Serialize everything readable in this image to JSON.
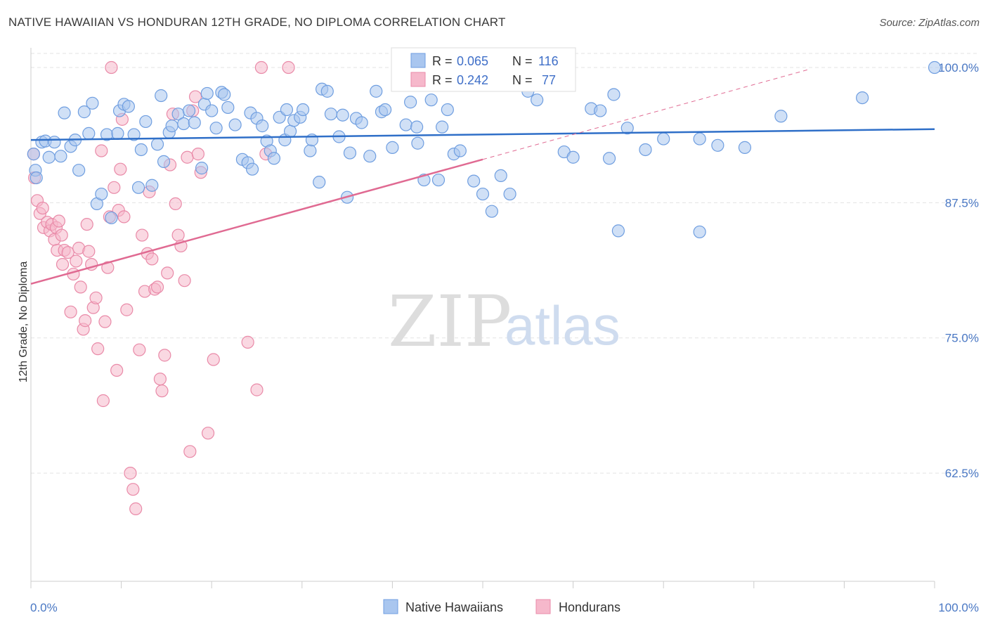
{
  "title": "NATIVE HAWAIIAN VS HONDURAN 12TH GRADE, NO DIPLOMA CORRELATION CHART",
  "source": "Source: ZipAtlas.com",
  "watermark": {
    "zip": "ZIP",
    "atlas": "atlas"
  },
  "colors": {
    "blue_fill": "#a9c6ef",
    "blue_stroke": "#6f9ee0",
    "blue_line": "#2f6fc8",
    "pink_fill": "#f6b8cb",
    "pink_stroke": "#e98aa8",
    "pink_line": "#e06a92",
    "grid": "#e3e3e3",
    "axis_text": "#4a78c4"
  },
  "chart_data": {
    "type": "scatter",
    "title": "NATIVE HAWAIIAN VS HONDURAN 12TH GRADE, NO DIPLOMA CORRELATION CHART",
    "xlabel": "",
    "ylabel": "12th Grade, No Diploma",
    "xlim": [
      0,
      100
    ],
    "ylim": [
      52.5,
      101.3
    ],
    "x_ticks_labels": [
      "0.0%",
      "100.0%"
    ],
    "y_ticks": [
      62.5,
      75.0,
      87.5,
      100.0
    ],
    "y_tick_labels": [
      "62.5%",
      "75.0%",
      "87.5%",
      "100.0%"
    ],
    "grid": true,
    "legend": {
      "position": "top-center",
      "entries": [
        {
          "r_label": "R =",
          "r": "0.065",
          "n_label": "N =",
          "n": "116"
        },
        {
          "r_label": "R =",
          "r": "0.242",
          "n_label": "N =",
          "n": "77"
        }
      ]
    },
    "series": [
      {
        "name": "Native Hawaiians",
        "trend": {
          "x0": 0,
          "y0": 93.3,
          "x1": 100,
          "y1": 94.3
        },
        "points": [
          [
            0.3,
            92.0
          ],
          [
            0.5,
            90.5
          ],
          [
            0.6,
            89.8
          ],
          [
            1.2,
            93.1
          ],
          [
            1.6,
            93.2
          ],
          [
            2.0,
            91.7
          ],
          [
            2.6,
            93.1
          ],
          [
            3.3,
            91.8
          ],
          [
            3.7,
            95.8
          ],
          [
            4.4,
            92.7
          ],
          [
            4.9,
            93.3
          ],
          [
            5.3,
            90.5
          ],
          [
            5.9,
            95.9
          ],
          [
            6.4,
            93.9
          ],
          [
            6.8,
            96.7
          ],
          [
            7.3,
            87.4
          ],
          [
            7.8,
            88.3
          ],
          [
            8.4,
            93.8
          ],
          [
            8.9,
            86.1
          ],
          [
            9.6,
            93.9
          ],
          [
            9.8,
            96.0
          ],
          [
            10.3,
            96.6
          ],
          [
            10.8,
            96.4
          ],
          [
            11.4,
            93.8
          ],
          [
            11.9,
            88.9
          ],
          [
            12.2,
            92.4
          ],
          [
            12.7,
            95.0
          ],
          [
            13.4,
            89.1
          ],
          [
            14.0,
            92.9
          ],
          [
            14.4,
            97.4
          ],
          [
            14.7,
            91.3
          ],
          [
            15.3,
            94.0
          ],
          [
            15.6,
            94.6
          ],
          [
            16.3,
            95.7
          ],
          [
            16.9,
            94.8
          ],
          [
            17.5,
            96.0
          ],
          [
            18.1,
            94.9
          ],
          [
            18.9,
            90.7
          ],
          [
            19.2,
            96.6
          ],
          [
            19.5,
            97.6
          ],
          [
            20.0,
            96.0
          ],
          [
            20.5,
            94.4
          ],
          [
            21.1,
            97.7
          ],
          [
            21.4,
            97.5
          ],
          [
            21.8,
            96.3
          ],
          [
            22.6,
            94.7
          ],
          [
            23.4,
            91.5
          ],
          [
            24.0,
            91.2
          ],
          [
            24.3,
            95.8
          ],
          [
            24.5,
            90.6
          ],
          [
            25.0,
            95.3
          ],
          [
            25.6,
            94.6
          ],
          [
            26.1,
            93.2
          ],
          [
            26.5,
            92.3
          ],
          [
            26.9,
            91.6
          ],
          [
            27.5,
            95.4
          ],
          [
            28.1,
            93.3
          ],
          [
            28.3,
            96.1
          ],
          [
            28.7,
            94.1
          ],
          [
            29.1,
            95.1
          ],
          [
            29.8,
            95.4
          ],
          [
            30.1,
            96.1
          ],
          [
            30.9,
            92.3
          ],
          [
            31.1,
            93.3
          ],
          [
            31.9,
            89.4
          ],
          [
            32.2,
            98.0
          ],
          [
            32.8,
            97.8
          ],
          [
            33.2,
            95.7
          ],
          [
            34.1,
            93.6
          ],
          [
            34.5,
            95.6
          ],
          [
            35.0,
            88.0
          ],
          [
            35.3,
            92.1
          ],
          [
            36.0,
            95.3
          ],
          [
            36.6,
            94.9
          ],
          [
            37.5,
            91.8
          ],
          [
            38.2,
            97.8
          ],
          [
            38.8,
            95.9
          ],
          [
            39.2,
            96.1
          ],
          [
            40.0,
            92.6
          ],
          [
            41.0,
            100.0
          ],
          [
            41.5,
            94.7
          ],
          [
            42.0,
            96.8
          ],
          [
            42.7,
            94.5
          ],
          [
            42.8,
            93.0
          ],
          [
            43.5,
            89.6
          ],
          [
            44.3,
            97.0
          ],
          [
            45.1,
            89.6
          ],
          [
            45.5,
            94.5
          ],
          [
            46.1,
            96.1
          ],
          [
            46.8,
            92.0
          ],
          [
            47.5,
            92.3
          ],
          [
            48.0,
            100.0
          ],
          [
            49.0,
            89.5
          ],
          [
            50.0,
            88.3
          ],
          [
            51.0,
            86.7
          ],
          [
            52.0,
            90.0
          ],
          [
            53.0,
            88.3
          ],
          [
            55.0,
            97.8
          ],
          [
            56.0,
            97.0
          ],
          [
            57.0,
            100.0
          ],
          [
            59.0,
            92.2
          ],
          [
            60.0,
            91.7
          ],
          [
            62.0,
            96.2
          ],
          [
            63.0,
            96.0
          ],
          [
            64.0,
            91.6
          ],
          [
            64.5,
            97.5
          ],
          [
            65.0,
            84.9
          ],
          [
            66.0,
            94.4
          ],
          [
            68.0,
            92.4
          ],
          [
            70.0,
            93.4
          ],
          [
            74.0,
            84.8
          ],
          [
            74.0,
            93.4
          ],
          [
            76.0,
            92.8
          ],
          [
            79.0,
            92.6
          ],
          [
            83.0,
            95.5
          ],
          [
            92.0,
            97.2
          ],
          [
            100.0,
            100.0
          ]
        ]
      },
      {
        "name": "Hondurans",
        "trend": {
          "x0": 0,
          "y0": 80.0,
          "x1": 50,
          "y1": 91.5,
          "dash_x1": 86,
          "dash_y1": 99.8
        },
        "points": [
          [
            0.3,
            92.0
          ],
          [
            0.4,
            89.8
          ],
          [
            0.7,
            87.7
          ],
          [
            1.0,
            86.5
          ],
          [
            1.3,
            87.0
          ],
          [
            1.4,
            85.2
          ],
          [
            1.8,
            85.7
          ],
          [
            2.1,
            84.9
          ],
          [
            2.3,
            85.5
          ],
          [
            2.6,
            84.1
          ],
          [
            2.8,
            85.2
          ],
          [
            2.9,
            83.1
          ],
          [
            3.1,
            85.8
          ],
          [
            3.4,
            84.5
          ],
          [
            3.5,
            81.8
          ],
          [
            3.7,
            83.1
          ],
          [
            4.1,
            82.9
          ],
          [
            4.4,
            77.4
          ],
          [
            4.7,
            80.9
          ],
          [
            5.0,
            82.1
          ],
          [
            5.3,
            83.3
          ],
          [
            5.5,
            79.7
          ],
          [
            5.8,
            75.8
          ],
          [
            6.0,
            76.6
          ],
          [
            6.2,
            85.5
          ],
          [
            6.4,
            83.0
          ],
          [
            6.7,
            81.8
          ],
          [
            6.9,
            77.8
          ],
          [
            7.2,
            78.7
          ],
          [
            7.4,
            74.0
          ],
          [
            7.8,
            92.3
          ],
          [
            8.0,
            69.2
          ],
          [
            8.2,
            76.5
          ],
          [
            8.5,
            81.5
          ],
          [
            8.7,
            86.2
          ],
          [
            8.9,
            100.0
          ],
          [
            9.2,
            88.9
          ],
          [
            9.5,
            72.0
          ],
          [
            9.7,
            86.8
          ],
          [
            9.9,
            90.6
          ],
          [
            10.1,
            95.2
          ],
          [
            10.3,
            86.2
          ],
          [
            10.6,
            77.6
          ],
          [
            11.0,
            62.5
          ],
          [
            11.3,
            61.0
          ],
          [
            11.6,
            59.2
          ],
          [
            12.0,
            73.9
          ],
          [
            12.3,
            84.5
          ],
          [
            12.6,
            79.3
          ],
          [
            12.9,
            82.8
          ],
          [
            13.1,
            88.5
          ],
          [
            13.4,
            82.3
          ],
          [
            13.7,
            79.5
          ],
          [
            14.0,
            79.7
          ],
          [
            14.3,
            71.2
          ],
          [
            14.5,
            70.1
          ],
          [
            14.8,
            73.4
          ],
          [
            15.1,
            81.0
          ],
          [
            15.4,
            91.0
          ],
          [
            15.7,
            95.7
          ],
          [
            16.0,
            87.4
          ],
          [
            16.3,
            84.5
          ],
          [
            16.6,
            83.5
          ],
          [
            17.0,
            80.3
          ],
          [
            17.3,
            91.7
          ],
          [
            17.6,
            64.5
          ],
          [
            17.9,
            96.0
          ],
          [
            18.2,
            97.3
          ],
          [
            18.5,
            92.0
          ],
          [
            18.8,
            90.3
          ],
          [
            19.6,
            66.2
          ],
          [
            20.2,
            73.0
          ],
          [
            24.0,
            74.6
          ],
          [
            25.0,
            70.2
          ],
          [
            25.5,
            100.0
          ],
          [
            26.0,
            92.0
          ],
          [
            28.5,
            100.0
          ]
        ]
      }
    ]
  },
  "bottom_legend": [
    "Native Hawaiians",
    "Hondurans"
  ]
}
